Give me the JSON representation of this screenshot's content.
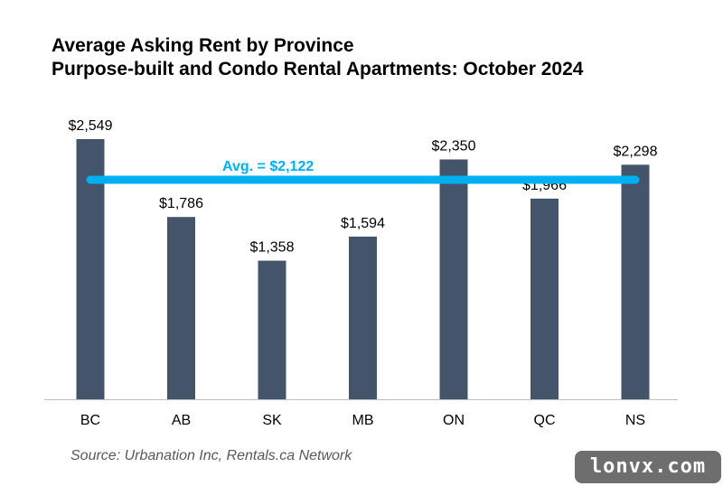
{
  "title_line1": "Average Asking Rent by Province",
  "title_line2": "Purpose-built and Condo Rental Apartments: October 2024",
  "source": "Source: Urbanation Inc, Rentals.ca Network",
  "watermark": "lonvx.com",
  "colors": {
    "bar": "#44546a",
    "average_line": "#00b0f0",
    "axis": "#bfbfbf"
  },
  "chart_data": {
    "type": "bar",
    "title": "Average Asking Rent by Province",
    "subtitle": "Purpose-built and Condo Rental Apartments: October 2024",
    "categories": [
      "BC",
      "AB",
      "SK",
      "MB",
      "ON",
      "QC",
      "NS"
    ],
    "values": [
      2549,
      1786,
      1358,
      1594,
      2350,
      1966,
      2298
    ],
    "value_labels": [
      "$2,549",
      "$1,786",
      "$1,358",
      "$1,594",
      "$2,350",
      "$1,966",
      "$2,298"
    ],
    "average": {
      "value": 2122,
      "label": "Avg. = $2,122"
    },
    "ylim": [
      0,
      2549
    ],
    "grid": false,
    "legend": "none"
  }
}
